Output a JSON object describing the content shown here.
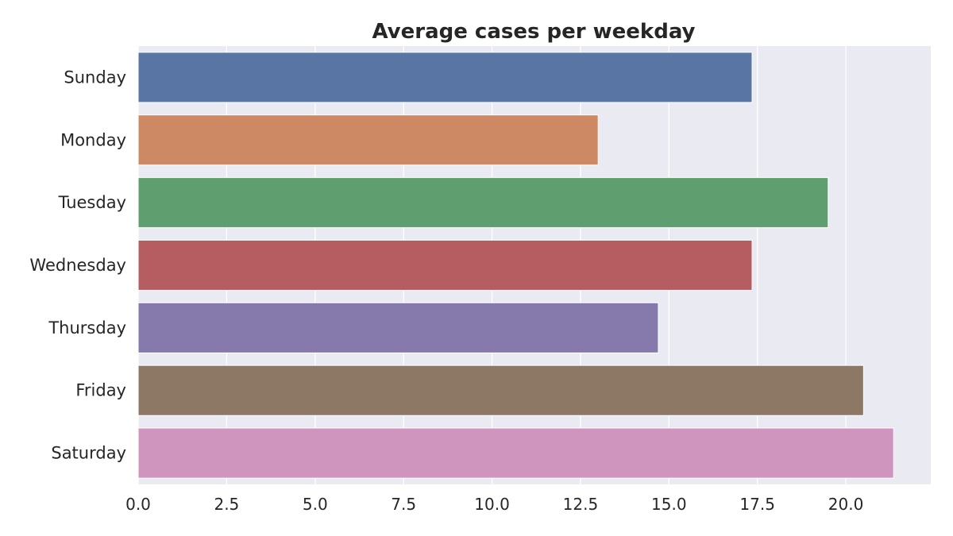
{
  "chart_data": {
    "type": "bar",
    "orientation": "horizontal",
    "title": "Average cases per weekday",
    "xlabel": "",
    "ylabel": "",
    "categories": [
      "Sunday",
      "Monday",
      "Tuesday",
      "Wednesday",
      "Thursday",
      "Friday",
      "Saturday"
    ],
    "values": [
      17.35,
      13.0,
      19.5,
      17.35,
      14.7,
      20.5,
      21.35
    ],
    "colors": [
      "#5975a4",
      "#cc8963",
      "#5f9e6e",
      "#b55d60",
      "#857aab",
      "#8d7866",
      "#d095bf"
    ],
    "xlim": [
      0,
      22.4
    ],
    "xticks": [
      0.0,
      2.5,
      5.0,
      7.5,
      10.0,
      12.5,
      15.0,
      17.5,
      20.0
    ],
    "xtick_labels": [
      "0.0",
      "2.5",
      "5.0",
      "7.5",
      "10.0",
      "12.5",
      "15.0",
      "17.5",
      "20.0"
    ],
    "grid": true,
    "background": "#eaeaf2",
    "grid_color": "#ffffff"
  }
}
